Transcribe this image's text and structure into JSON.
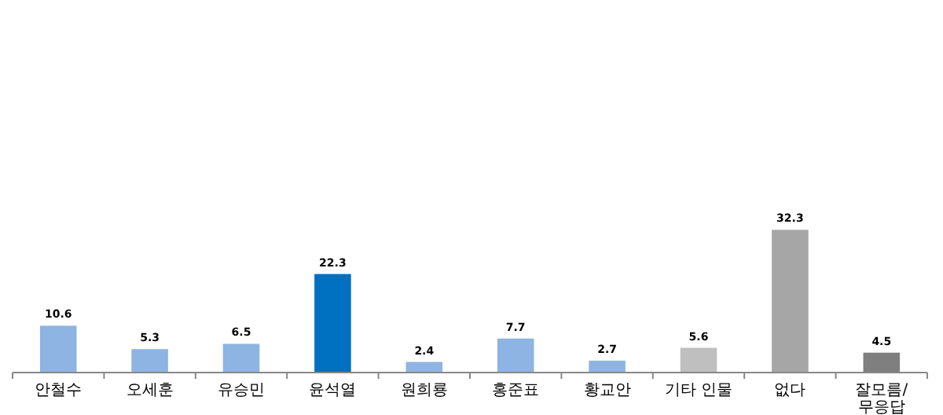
{
  "chart_data": {
    "type": "bar",
    "categories": [
      "안철수",
      "오세훈",
      "유승민",
      "윤석열",
      "원희룡",
      "홍준표",
      "황교안",
      "기타 인물",
      "없다",
      "잘모름/무응답"
    ],
    "values": [
      10.6,
      5.3,
      6.5,
      22.3,
      2.4,
      7.7,
      2.7,
      5.6,
      32.3,
      4.5
    ],
    "colors": [
      "#8db4e2",
      "#8db4e2",
      "#8db4e2",
      "#0070c0",
      "#8db4e2",
      "#8db4e2",
      "#8db4e2",
      "#bfbfbf",
      "#a6a6a6",
      "#7f7f7f"
    ],
    "data_labels": true
  }
}
